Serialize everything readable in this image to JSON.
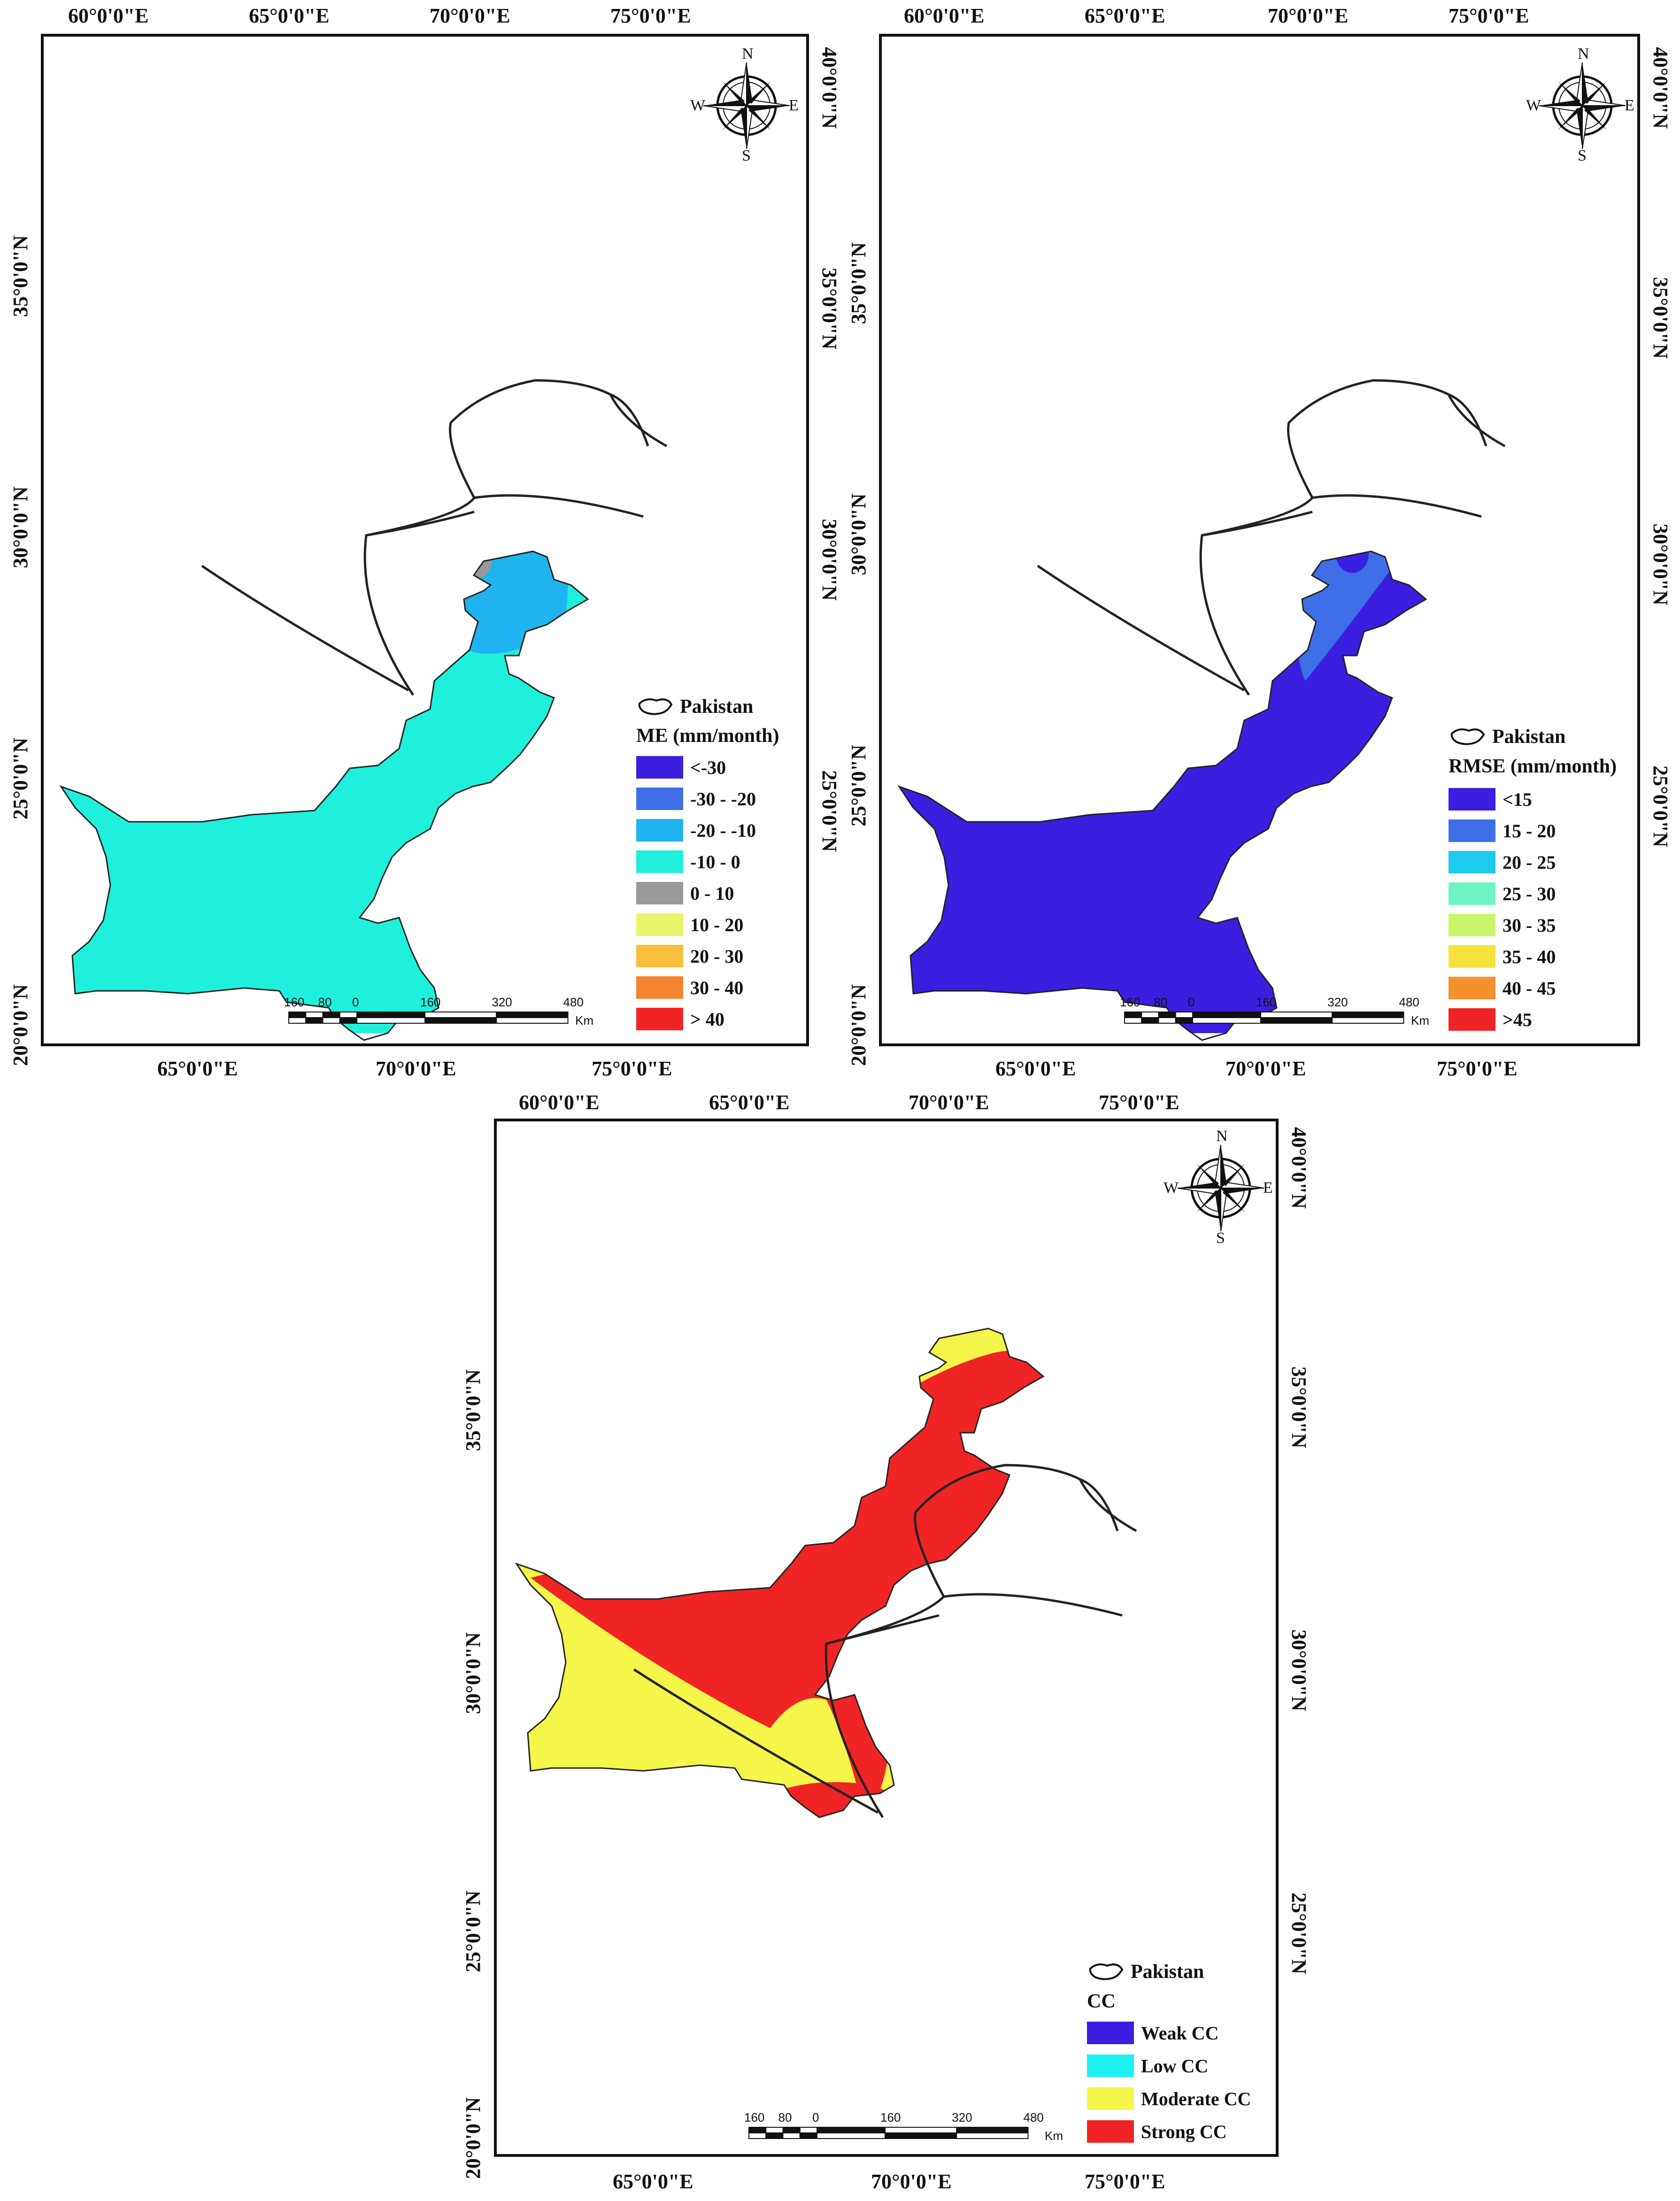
{
  "maps": [
    {
      "id": "me",
      "top_ticks": [
        "60°0'0\"E",
        "65°0'0\"E",
        "70°0'0\"E",
        "75°0'0\"E"
      ],
      "bottom_ticks": [
        "65°0'0\"E",
        "70°0'0\"E",
        "75°0'0\"E"
      ],
      "left_ticks": [
        "35°0'0\"N",
        "30°0'0\"N",
        "25°0'0\"N",
        "20°0'0\"N"
      ],
      "right_ticks": [
        "40°0'0\"N",
        "35°0'0\"N",
        "30°0'0\"N",
        "25°0'0\"N"
      ],
      "legend": {
        "boundary_label": "Pakistan",
        "title": "ME (mm/month)",
        "classes": [
          {
            "label": "<-30",
            "color": "#3a1fe0"
          },
          {
            "label": "-30 - -20",
            "color": "#3f6fe8"
          },
          {
            "label": "-20 - -10",
            "color": "#1fb4ef"
          },
          {
            "label": "-10 - 0",
            "color": "#1ef0dc"
          },
          {
            "label": "0 - 10",
            "color": "#999999"
          },
          {
            "label": "10 - 20",
            "color": "#e8f56a"
          },
          {
            "label": "20 - 30",
            "color": "#f7bf3c"
          },
          {
            "label": "30 - 40",
            "color": "#f5842f"
          },
          {
            "label": "> 40",
            "color": "#f02424"
          }
        ]
      },
      "scale": {
        "labels": [
          "160",
          "80",
          "0",
          "160",
          "320",
          "480"
        ],
        "unit": "Km"
      },
      "compass": {
        "n": "N",
        "s": "S",
        "e": "E",
        "w": "W"
      }
    },
    {
      "id": "rmse",
      "top_ticks": [
        "60°0'0\"E",
        "65°0'0\"E",
        "70°0'0\"E",
        "75°0'0\"E"
      ],
      "bottom_ticks": [
        "65°0'0\"E",
        "70°0'0\"E",
        "75°0'0\"E"
      ],
      "left_ticks": [
        "35°0'0\"N",
        "30°0'0\"N",
        "25°0'0\"N",
        "20°0'0\"N"
      ],
      "right_ticks": [
        "40°0'0\"N",
        "35°0'0\"N",
        "30°0'0\"N",
        "25°0'0\"N"
      ],
      "legend": {
        "boundary_label": "Pakistan",
        "title": "RMSE (mm/month)",
        "classes": [
          {
            "label": "<15",
            "color": "#3a1fe0"
          },
          {
            "label": "15 - 20",
            "color": "#3f6fe8"
          },
          {
            "label": "20 - 25",
            "color": "#1fcaef"
          },
          {
            "label": "25 - 30",
            "color": "#6ff5c4"
          },
          {
            "label": "30 - 35",
            "color": "#c8f56a"
          },
          {
            "label": "35 - 40",
            "color": "#f5e23a"
          },
          {
            "label": "40 - 45",
            "color": "#f5902f"
          },
          {
            "label": ">45",
            "color": "#f02424"
          }
        ]
      },
      "scale": {
        "labels": [
          "160",
          "80",
          "0",
          "160",
          "320",
          "480"
        ],
        "unit": "Km"
      },
      "compass": {
        "n": "N",
        "s": "S",
        "e": "E",
        "w": "W"
      }
    },
    {
      "id": "cc",
      "top_ticks": [
        "60°0'0\"E",
        "65°0'0\"E",
        "70°0'0\"E",
        "75°0'0\"E"
      ],
      "bottom_ticks": [
        "65°0'0\"E",
        "70°0'0\"E",
        "75°0'0\"E"
      ],
      "left_ticks": [
        "35°0'0\"N",
        "30°0'0\"N",
        "25°0'0\"N",
        "20°0'0\"N"
      ],
      "right_ticks": [
        "40°0'0\"N",
        "35°0'0\"N",
        "30°0'0\"N",
        "25°0'0\"N"
      ],
      "legend": {
        "boundary_label": "Pakistan",
        "title": "CC",
        "classes": [
          {
            "label": "Weak CC",
            "color": "#3a1fe0"
          },
          {
            "label": "Low CC",
            "color": "#1ef0ef"
          },
          {
            "label": "Moderate CC",
            "color": "#f5f54a"
          },
          {
            "label": "Strong CC",
            "color": "#f02424"
          }
        ]
      },
      "scale": {
        "labels": [
          "160",
          "80",
          "0",
          "160",
          "320",
          "480"
        ],
        "unit": "Km"
      },
      "compass": {
        "n": "N",
        "s": "S",
        "e": "E",
        "w": "W"
      }
    }
  ]
}
